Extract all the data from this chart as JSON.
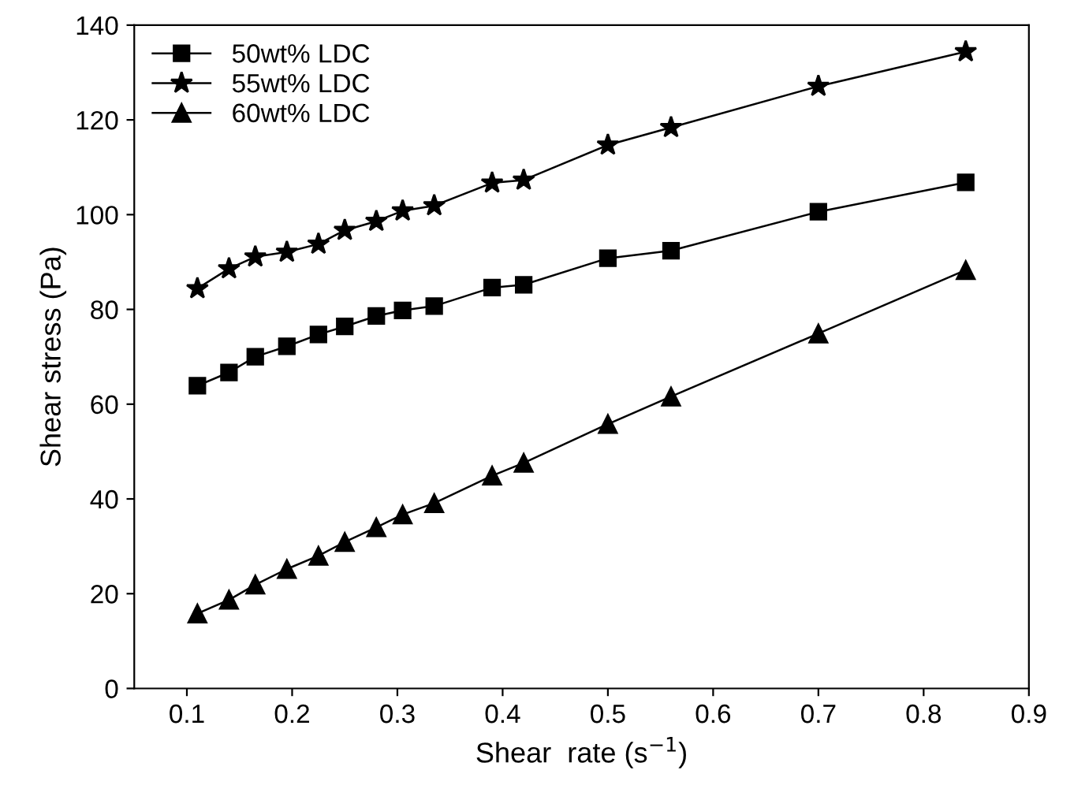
{
  "chart_data": {
    "type": "line",
    "xlabel": "Shear  rate (s$^{−1}$)",
    "ylabel": "Shear stress (Pa)",
    "xlim": [
      0.05,
      0.9
    ],
    "xticks": [
      0.1,
      0.2,
      0.3,
      0.4,
      0.5,
      0.6,
      0.7,
      0.8,
      0.9
    ],
    "ylim": [
      0,
      140
    ],
    "yticks": [
      0,
      20,
      40,
      60,
      80,
      100,
      120,
      140
    ],
    "grid": false,
    "legend": "top left",
    "line_style": "solid",
    "x": [
      0.11,
      0.14,
      0.165,
      0.195,
      0.225,
      0.25,
      0.28,
      0.305,
      0.335,
      0.39,
      0.42,
      0.5,
      0.56,
      0.7,
      0.84
    ],
    "series": [
      {
        "name": "50wt% LDC",
        "color": "#000000",
        "marker": "square",
        "values": [
          63.9,
          66.7,
          70,
          72.2,
          74.7,
          76.4,
          78.6,
          79.8,
          80.7,
          84.6,
          85.2,
          90.8,
          92.4,
          100.6,
          106.8
        ]
      },
      {
        "name": "55wt% LDC",
        "color": "#000000",
        "marker": "star",
        "values": [
          84.4,
          88.6,
          91.1,
          92.1,
          93.8,
          96.7,
          98.6,
          100.8,
          101.9,
          106.7,
          107.3,
          114.7,
          118.4,
          127.1,
          134.4
        ]
      },
      {
        "name": "60wt% LDC",
        "color": "#000000",
        "marker": "triangle",
        "values": [
          15.8,
          18.7,
          21.9,
          25.2,
          28,
          30.9,
          34,
          36.7,
          39.1,
          44.9,
          47.6,
          55.8,
          61.6,
          74.9,
          88.3
        ]
      }
    ]
  }
}
